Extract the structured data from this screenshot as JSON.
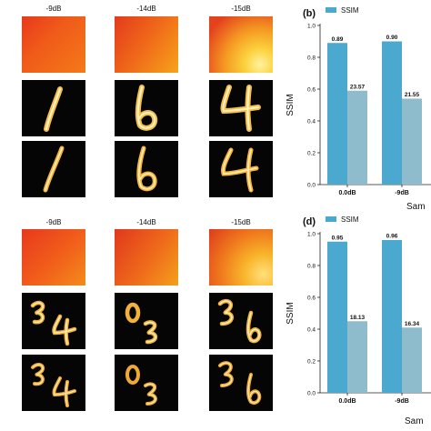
{
  "image_grid": {
    "top": {
      "column_labels": [
        "-9dB",
        "-14dB",
        "-15dB"
      ]
    },
    "bottom": {
      "column_labels": [
        "-9dB",
        "-14dB",
        "-15dB"
      ]
    }
  },
  "chart_data": [
    {
      "panel_label": "(b)",
      "type": "bar",
      "categories": [
        "0.0dB",
        "-9dB"
      ],
      "series": [
        {
          "name": "SSIM",
          "values": [
            0.89,
            0.9
          ],
          "color": "#4ba8cf"
        },
        {
          "values": [
            0.59,
            0.54
          ],
          "labels": [
            "23.57",
            "21.55"
          ],
          "color": "#8fbccc"
        }
      ],
      "ylabel": "SSIM",
      "xlabel": "Sam",
      "ylim": [
        0.0,
        1.0
      ],
      "yticks": [
        "0.0",
        "0.2",
        "0.4",
        "0.6",
        "0.8",
        "1.0"
      ],
      "legend": "top"
    },
    {
      "panel_label": "(d)",
      "type": "bar",
      "categories": [
        "0.0dB",
        "-9dB"
      ],
      "series": [
        {
          "name": "SSIM",
          "values": [
            0.95,
            0.96
          ],
          "color": "#4ba8cf"
        },
        {
          "values": [
            0.45,
            0.41
          ],
          "labels": [
            "18.13",
            "16.34"
          ],
          "color": "#8fbccc"
        }
      ],
      "ylabel": "SSIM",
      "xlabel": "Sam",
      "ylim": [
        0.0,
        1.0
      ],
      "yticks": [
        "0.0",
        "0.2",
        "0.4",
        "0.6",
        "0.8",
        "1.0"
      ],
      "legend": "top"
    }
  ]
}
